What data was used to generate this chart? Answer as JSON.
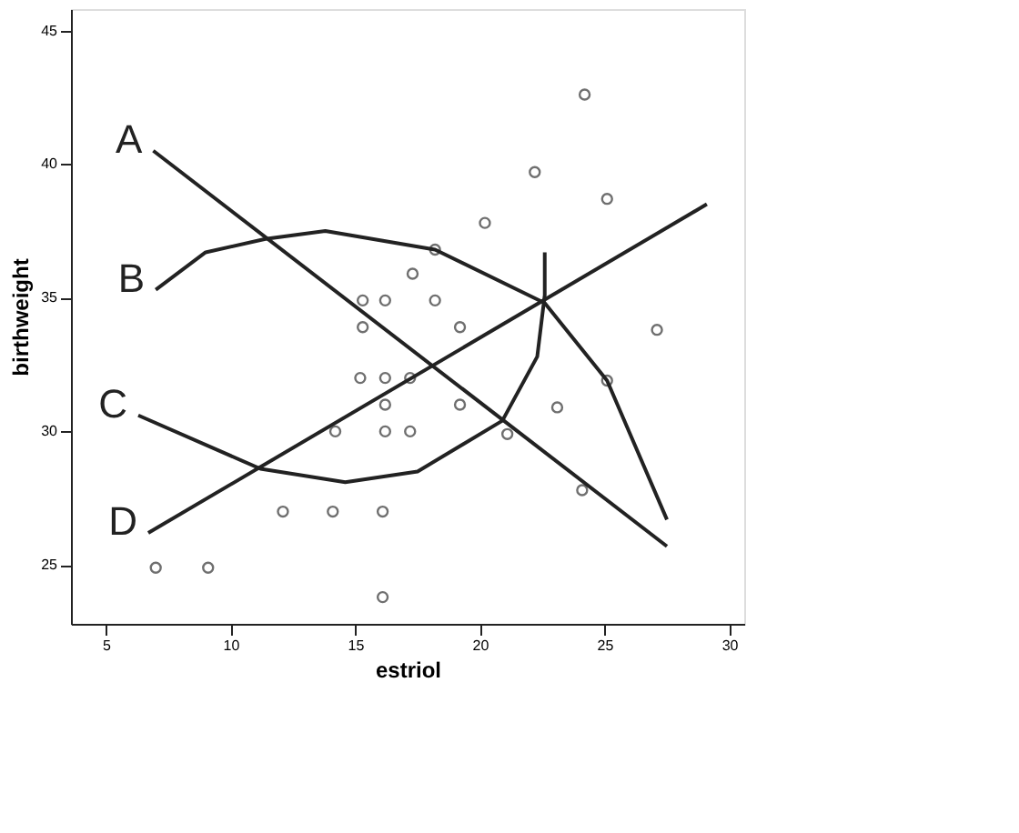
{
  "chart_data": {
    "type": "scatter",
    "xlabel": "estriol",
    "ylabel": "birthweight",
    "xlim": [
      3.6,
      30.6
    ],
    "ylim": [
      22.8,
      45.8
    ],
    "xticks": [
      5,
      10,
      15,
      20,
      25,
      30
    ],
    "yticks": [
      25,
      30,
      35,
      40,
      45
    ],
    "grid": false,
    "marker": "circle",
    "series": [
      {
        "color": "#333333",
        "x": [
          24.2,
          22.2,
          25.1,
          20.2,
          18.2,
          17.3,
          15.3,
          16.2,
          18.2,
          15.3,
          19.2,
          27.1,
          15.2,
          16.2,
          17.2,
          16.2,
          19.2,
          25.1,
          23.1,
          14.2,
          16.2,
          17.2,
          21.1,
          24.1,
          12.1,
          14.1,
          16.1,
          7.0,
          9.1,
          16.1
        ],
        "values": [
          42.6,
          39.7,
          38.7,
          37.8,
          36.8,
          35.9,
          34.9,
          34.9,
          34.9,
          33.9,
          33.9,
          33.8,
          32.0,
          32.0,
          32.0,
          31.0,
          31.0,
          31.9,
          30.9,
          30.0,
          30.0,
          30.0,
          29.9,
          27.8,
          27.0,
          27.0,
          27.0,
          24.9,
          24.9,
          23.8
        ]
      },
      {
        "type": "line",
        "color": "#222222",
        "marker": "none",
        "line_style": "solid",
        "x": [
          6.9,
          27.5
        ],
        "values": [
          40.5,
          25.7
        ]
      },
      {
        "type": "line",
        "color": "#222222",
        "marker": "none",
        "line_style": "solid",
        "x": [
          7.0,
          9.0,
          11.4,
          13.8,
          18.2,
          22.6,
          25.1,
          27.5
        ],
        "values": [
          35.3,
          36.7,
          37.2,
          37.5,
          36.8,
          34.8,
          31.9,
          26.7
        ]
      },
      {
        "type": "line",
        "color": "#222222",
        "marker": "none",
        "line_style": "solid",
        "x": [
          6.3,
          11.2,
          14.6,
          17.5,
          20.9,
          22.3,
          22.6,
          22.6
        ],
        "values": [
          30.6,
          28.6,
          28.1,
          28.5,
          30.4,
          32.8,
          35.1,
          36.7
        ]
      },
      {
        "type": "line",
        "color": "#222222",
        "marker": "none",
        "line_style": "solid",
        "x": [
          6.7,
          29.1
        ],
        "values": [
          26.2,
          38.5
        ]
      }
    ],
    "annotations": [
      "A",
      "B",
      "C",
      "D"
    ]
  }
}
